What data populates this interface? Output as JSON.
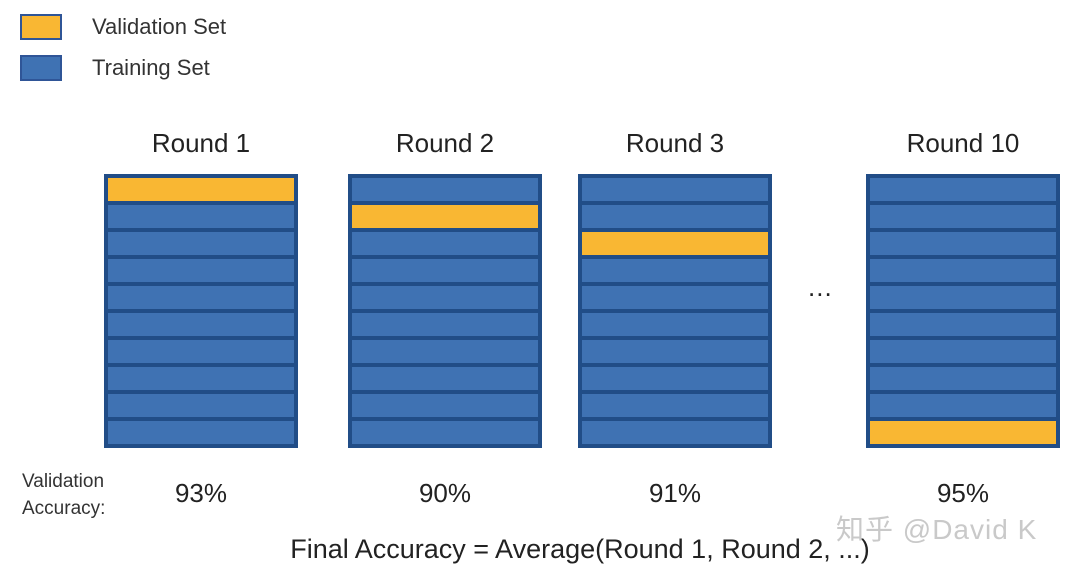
{
  "legend": [
    {
      "label": "Validation Set",
      "color": "#f9b733"
    },
    {
      "label": "Training Set",
      "color": "#3f72b3"
    }
  ],
  "rounds": [
    {
      "title": "Round 1",
      "accuracy": "93%",
      "folds": 10,
      "validation_fold": 1
    },
    {
      "title": "Round 2",
      "accuracy": "90%",
      "folds": 10,
      "validation_fold": 2
    },
    {
      "title": "Round 3",
      "accuracy": "91%",
      "folds": 10,
      "validation_fold": 3
    },
    {
      "title": "Round 10",
      "accuracy": "95%",
      "folds": 10,
      "validation_fold": 10
    }
  ],
  "ellipsis": "...",
  "accuracy_label_line1": "Validation",
  "accuracy_label_line2": "Accuracy:",
  "formula": "Final Accuracy  =  Average(Round 1, Round 2, ...)",
  "watermark": "知乎 @David K",
  "colors": {
    "validation": "#f9b733",
    "training": "#3f72b3",
    "border": "#214d87"
  }
}
